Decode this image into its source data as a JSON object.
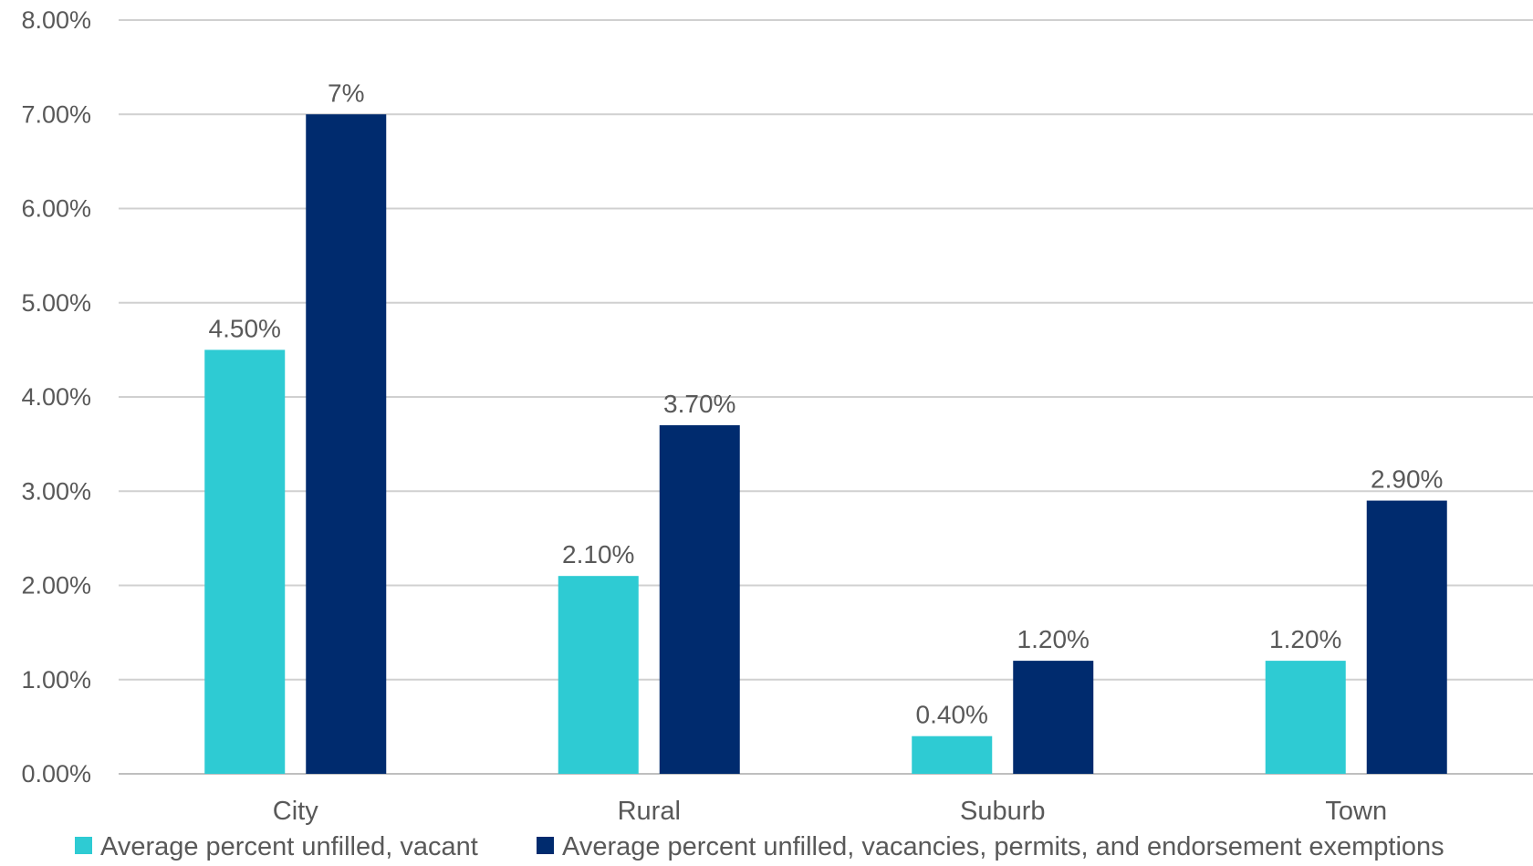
{
  "chart_data": {
    "type": "bar",
    "categories": [
      "City",
      "Rural",
      "Suburb",
      "Town"
    ],
    "series": [
      {
        "name": "Average percent unfilled, vacant",
        "color": "#2ECBD3",
        "values": [
          4.5,
          2.1,
          0.4,
          1.2
        ],
        "labels": [
          "4.50%",
          "2.10%",
          "0.40%",
          "1.20%"
        ]
      },
      {
        "name": "Average percent unfilled, vacancies, permits, and endorsement exemptions",
        "color": "#002B6E",
        "values": [
          7.0,
          3.7,
          1.2,
          2.9
        ],
        "labels": [
          "7%",
          "3.70%",
          "1.20%",
          "2.90%"
        ]
      }
    ],
    "ylim": [
      0,
      8
    ],
    "yticks": [
      "0.00%",
      "1.00%",
      "2.00%",
      "3.00%",
      "4.00%",
      "5.00%",
      "6.00%",
      "7.00%",
      "8.00%"
    ],
    "grid": true,
    "legend_position": "bottom",
    "title": "",
    "xlabel": "",
    "ylabel": ""
  }
}
